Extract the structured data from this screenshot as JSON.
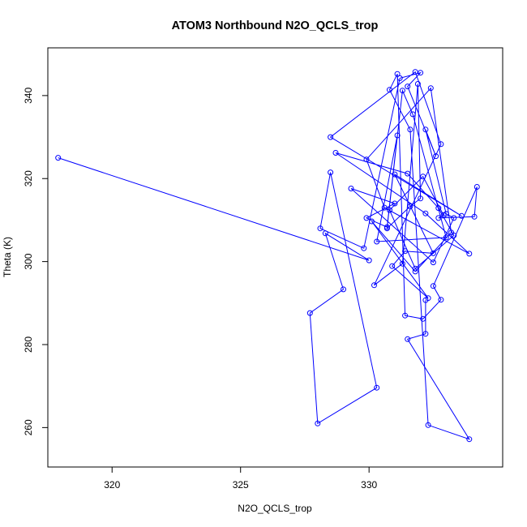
{
  "chart_data": {
    "type": "line",
    "title": "ATOM3 Northbound N2O_QCLS_trop",
    "xlabel": "N2O_QCLS_trop",
    "ylabel": "Theta (K)",
    "xlim": [
      317.5,
      335.2
    ],
    "ylim": [
      250.5,
      351.5
    ],
    "x_ticks": [
      320,
      325,
      330
    ],
    "y_ticks": [
      260,
      280,
      300,
      320,
      340
    ],
    "grid": false,
    "legend": "none",
    "markers": "open-circle",
    "color": "#0000ff",
    "series": [
      {
        "x": [
          317.9,
          330.0,
          328.3,
          329.0,
          327.7,
          328.0,
          330.3,
          328.5,
          328.1,
          329.8,
          331.2,
          332.0,
          331.5,
          332.6,
          332.2,
          333.0,
          333.3,
          332.5,
          329.3,
          331.0,
          329.9,
          330.7,
          331.1,
          330.3,
          333.0,
          331.7,
          331.3,
          330.7,
          331.6,
          332.0,
          331.9,
          331.3,
          330.2,
          332.8,
          331.8,
          328.5,
          333.6,
          331.0,
          332.5,
          331.4,
          330.9,
          332.3,
          330.1,
          331.8,
          333.2,
          332.4,
          329.9,
          330.6,
          333.9,
          332.2,
          328.7,
          331.5,
          332.7,
          333.3,
          331.8,
          330.8,
          332.1,
          332.9,
          332.7,
          334.1,
          334.2,
          332.5,
          332.8,
          332.1,
          331.4,
          331.1,
          330.8,
          331.6,
          332.3,
          333.9,
          331.5,
          332.2,
          332.2
        ],
        "y": [
          325.0,
          300.3,
          306.8,
          293.3,
          287.6,
          261.0,
          269.6,
          321.5,
          308.0,
          303.2,
          344.2,
          345.5,
          342.2,
          325.4,
          331.8,
          311.5,
          310.5,
          299.8,
          317.6,
          314.0,
          310.5,
          308.3,
          330.4,
          304.8,
          305.8,
          335.5,
          341.2,
          308.0,
          313.3,
          315.2,
          342.8,
          299.5,
          294.3,
          328.3,
          345.7,
          330.0,
          311.0,
          321.0,
          302.0,
          302.5,
          298.9,
          291.2,
          309.7,
          297.6,
          307.0,
          341.8,
          324.6,
          313.0,
          301.9,
          311.6,
          326.2,
          321.2,
          312.9,
          306.3,
          298.3,
          312.4,
          320.5,
          311.2,
          310.5,
          310.8,
          318.0,
          294.1,
          290.8,
          286.2,
          287.0,
          345.2,
          341.4,
          331.8,
          260.6,
          257.2,
          281.3,
          282.6,
          290.7
        ]
      }
    ]
  }
}
